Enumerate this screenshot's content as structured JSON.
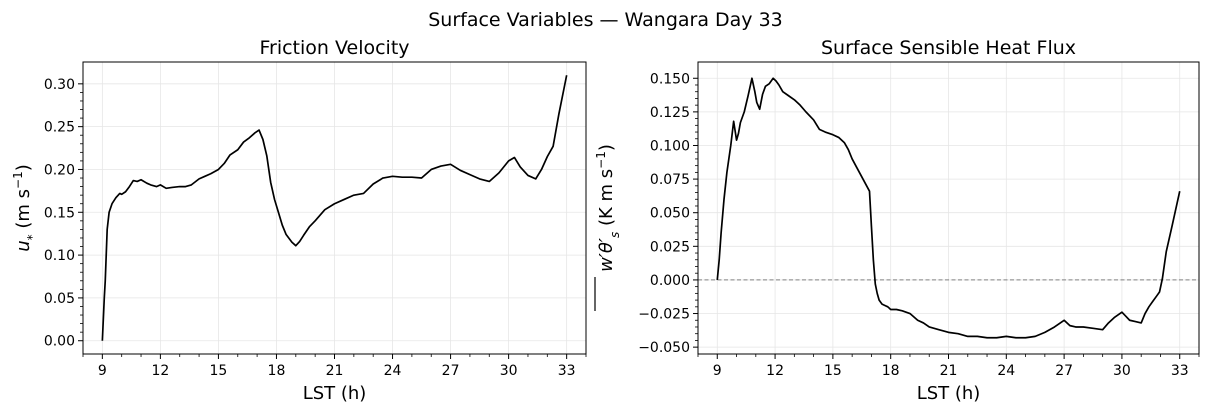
{
  "figure": {
    "suptitle": "Surface Variables — Wangara Day 33"
  },
  "chart_data": [
    {
      "type": "line",
      "title": "Friction Velocity",
      "xlabel": "LST (h)",
      "ylabel": "u_* (m s^-1)",
      "xlim": [
        8.0,
        34.0
      ],
      "ylim": [
        -0.0155,
        0.3255
      ],
      "xticks": [
        9,
        12,
        15,
        18,
        21,
        24,
        27,
        30,
        33
      ],
      "yticks": [
        0.0,
        0.05,
        0.1,
        0.15,
        0.2,
        0.25,
        0.3
      ],
      "ytick_labels": [
        "0.00",
        "0.05",
        "0.10",
        "0.15",
        "0.20",
        "0.25",
        "0.30"
      ],
      "grid": true,
      "series": [
        {
          "color": "#000000",
          "x": [
            9.0,
            9.1,
            9.15,
            9.25,
            9.35,
            9.5,
            9.7,
            9.9,
            10.0,
            10.2,
            10.4,
            10.6,
            10.8,
            11.0,
            11.3,
            11.5,
            11.8,
            12.0,
            12.3,
            12.6,
            13.0,
            13.3,
            13.6,
            14.0,
            14.3,
            14.6,
            15.0,
            15.3,
            15.6,
            16.0,
            16.3,
            16.6,
            16.9,
            17.1,
            17.3,
            17.5,
            17.7,
            17.9,
            18.1,
            18.3,
            18.5,
            18.8,
            19.0,
            19.2,
            19.4,
            19.7,
            20.0,
            20.5,
            21.0,
            21.5,
            22.0,
            22.5,
            23.0,
            23.5,
            24.0,
            24.5,
            25.0,
            25.5,
            26.0,
            26.5,
            27.0,
            27.5,
            28.0,
            28.5,
            29.0,
            29.5,
            30.0,
            30.3,
            30.6,
            31.0,
            31.4,
            31.7,
            32.0,
            32.3,
            32.6,
            33.0
          ],
          "y": [
            0.0,
            0.05,
            0.07,
            0.13,
            0.15,
            0.16,
            0.167,
            0.172,
            0.171,
            0.174,
            0.18,
            0.187,
            0.186,
            0.188,
            0.184,
            0.182,
            0.18,
            0.182,
            0.178,
            0.179,
            0.18,
            0.18,
            0.182,
            0.189,
            0.192,
            0.195,
            0.2,
            0.207,
            0.217,
            0.223,
            0.232,
            0.237,
            0.243,
            0.246,
            0.235,
            0.216,
            0.185,
            0.165,
            0.15,
            0.135,
            0.124,
            0.115,
            0.111,
            0.116,
            0.123,
            0.133,
            0.14,
            0.153,
            0.16,
            0.165,
            0.17,
            0.172,
            0.183,
            0.19,
            0.192,
            0.191,
            0.191,
            0.19,
            0.2,
            0.204,
            0.206,
            0.199,
            0.194,
            0.189,
            0.186,
            0.196,
            0.21,
            0.214,
            0.203,
            0.193,
            0.189,
            0.2,
            0.215,
            0.227,
            0.265,
            0.31
          ]
        }
      ]
    },
    {
      "type": "line",
      "title": "Surface Sensible Heat Flux",
      "xlabel": "LST (h)",
      "ylabel": "overline{w'θ'}_s (K m s^-1)",
      "xlim": [
        8.0,
        34.0
      ],
      "ylim": [
        -0.0551,
        0.1621
      ],
      "xticks": [
        9,
        12,
        15,
        18,
        21,
        24,
        27,
        30,
        33
      ],
      "yticks": [
        -0.05,
        -0.025,
        0.0,
        0.025,
        0.05,
        0.075,
        0.1,
        0.125,
        0.15
      ],
      "ytick_labels": [
        "−0.050",
        "−0.025",
        "0.000",
        "0.025",
        "0.050",
        "0.075",
        "0.100",
        "0.125",
        "0.150"
      ],
      "grid": true,
      "hline": {
        "y": 0.0,
        "style": "dashed",
        "color": "#808080"
      },
      "series": [
        {
          "color": "#000000",
          "x": [
            9.0,
            9.1,
            9.2,
            9.35,
            9.5,
            9.7,
            9.85,
            10.0,
            10.1,
            10.2,
            10.4,
            10.6,
            10.8,
            10.95,
            11.05,
            11.2,
            11.35,
            11.5,
            11.7,
            11.9,
            12.05,
            12.2,
            12.4,
            12.7,
            13.0,
            13.3,
            13.6,
            14.0,
            14.3,
            14.6,
            15.0,
            15.3,
            15.6,
            15.8,
            16.0,
            16.3,
            16.6,
            16.9,
            17.0,
            17.1,
            17.2,
            17.3,
            17.4,
            17.55,
            17.7,
            17.85,
            18.0,
            18.3,
            18.6,
            19.0,
            19.4,
            19.7,
            20.0,
            20.5,
            21.0,
            21.5,
            22.0,
            22.5,
            23.0,
            23.5,
            24.0,
            24.5,
            25.0,
            25.5,
            26.0,
            26.5,
            27.0,
            27.3,
            27.6,
            28.0,
            28.5,
            29.0,
            29.3,
            29.6,
            30.0,
            30.2,
            30.4,
            30.7,
            31.0,
            31.2,
            31.4,
            31.6,
            31.8,
            31.95,
            32.1,
            32.3,
            32.6,
            33.0
          ],
          "y": [
            0.0,
            0.015,
            0.035,
            0.06,
            0.08,
            0.1,
            0.118,
            0.104,
            0.109,
            0.117,
            0.125,
            0.137,
            0.15,
            0.14,
            0.132,
            0.127,
            0.138,
            0.144,
            0.146,
            0.15,
            0.148,
            0.145,
            0.14,
            0.137,
            0.134,
            0.13,
            0.125,
            0.119,
            0.112,
            0.11,
            0.108,
            0.106,
            0.102,
            0.097,
            0.09,
            0.082,
            0.074,
            0.066,
            0.04,
            0.015,
            -0.003,
            -0.01,
            -0.015,
            -0.018,
            -0.019,
            -0.02,
            -0.022,
            -0.022,
            -0.023,
            -0.025,
            -0.03,
            -0.032,
            -0.035,
            -0.037,
            -0.039,
            -0.04,
            -0.042,
            -0.042,
            -0.043,
            -0.043,
            -0.042,
            -0.043,
            -0.043,
            -0.042,
            -0.039,
            -0.035,
            -0.03,
            -0.034,
            -0.035,
            -0.035,
            -0.036,
            -0.037,
            -0.032,
            -0.028,
            -0.024,
            -0.027,
            -0.03,
            -0.031,
            -0.032,
            -0.025,
            -0.02,
            -0.016,
            -0.012,
            -0.009,
            0.001,
            0.021,
            0.04,
            0.066
          ]
        }
      ]
    }
  ]
}
